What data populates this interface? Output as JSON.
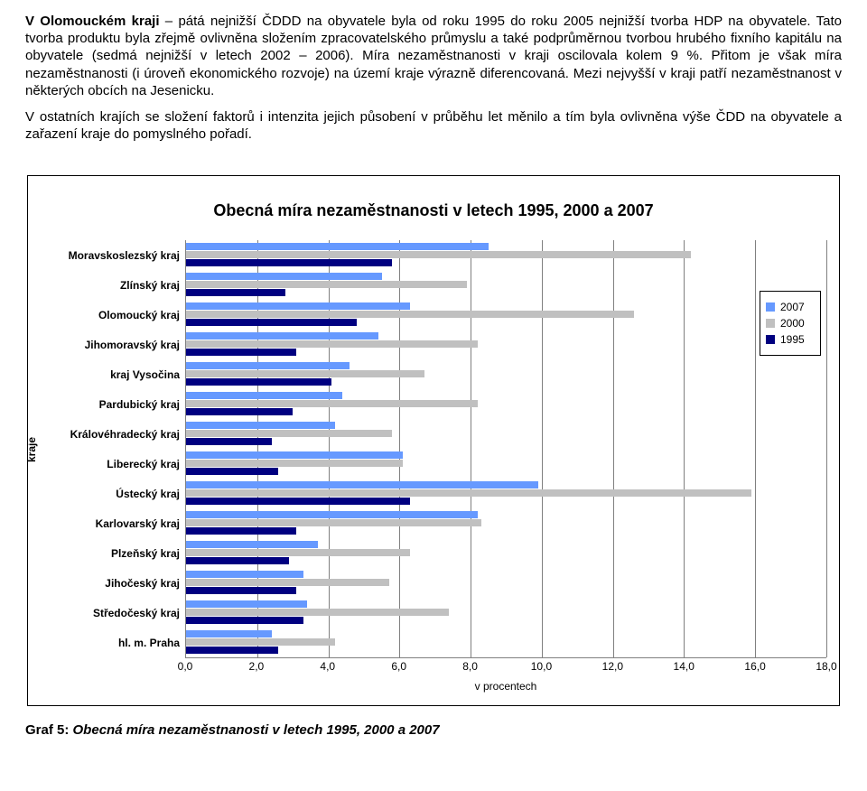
{
  "para1_bold": "V Olomouckém kraji",
  "para1_rest": " – pátá nejnižší ČDDD na obyvatele byla od roku 1995 do roku 2005 nejnižší tvorba HDP na obyvatele. Tato tvorba produktu byla zřejmě ovlivněna složením zpracovatelského průmyslu a také podprůměrnou tvorbou hrubého fixního kapitálu na obyvatele (sedmá nejnižší v letech 2002 – 2006). Míra nezaměstnanosti v kraji oscilovala kolem 9 %. Přitom je však míra nezaměstnanosti (i úroveň ekonomického rozvoje) na území kraje výrazně diferencovaná. Mezi nejvyšší v kraji patří nezaměstnanost v některých obcích na Jesenicku.",
  "para2": "V ostatních krajích se složení faktorů i intenzita jejich působení v průběhu let měnilo a tím byla ovlivněna výše ČDD na obyvatele a zařazení kraje do pomyslného pořadí.",
  "chart": {
    "title": "Obecná míra nezaměstnanosti v letech 1995, 2000 a 2007",
    "ylabel": "kraje",
    "xlabel": "v procentech",
    "xmax": 18.0,
    "xticks": [
      "0,0",
      "2,0",
      "4,0",
      "6,0",
      "8,0",
      "10,0",
      "12,0",
      "14,0",
      "16,0",
      "18,0"
    ],
    "xtick_vals": [
      0,
      2,
      4,
      6,
      8,
      10,
      12,
      14,
      16,
      18
    ],
    "series": [
      {
        "label": "2007",
        "color": "#6699ff"
      },
      {
        "label": "2000",
        "color": "#c0c0c0"
      },
      {
        "label": "1995",
        "color": "#000080"
      }
    ],
    "categories": [
      {
        "name": "Moravskoslezský kraj",
        "vals": [
          8.5,
          14.2,
          5.8
        ]
      },
      {
        "name": "Zlínský kraj",
        "vals": [
          5.5,
          7.9,
          2.8
        ]
      },
      {
        "name": "Olomoucký kraj",
        "vals": [
          6.3,
          12.6,
          4.8
        ]
      },
      {
        "name": "Jihomoravský kraj",
        "vals": [
          5.4,
          8.2,
          3.1
        ]
      },
      {
        "name": "kraj Vysočina",
        "vals": [
          4.6,
          6.7,
          4.1
        ]
      },
      {
        "name": "Pardubický kraj",
        "vals": [
          4.4,
          8.2,
          3.0
        ]
      },
      {
        "name": "Královéhradecký kraj",
        "vals": [
          4.2,
          5.8,
          2.4
        ]
      },
      {
        "name": "Liberecký kraj",
        "vals": [
          6.1,
          6.1,
          2.6
        ]
      },
      {
        "name": "Ústecký kraj",
        "vals": [
          9.9,
          15.9,
          6.3
        ]
      },
      {
        "name": "Karlovarský kraj",
        "vals": [
          8.2,
          8.3,
          3.1
        ]
      },
      {
        "name": "Plzeňský kraj",
        "vals": [
          3.7,
          6.3,
          2.9
        ]
      },
      {
        "name": "Jihočeský kraj",
        "vals": [
          3.3,
          5.7,
          3.1
        ]
      },
      {
        "name": "Středočeský kraj",
        "vals": [
          3.4,
          7.4,
          3.3
        ]
      },
      {
        "name": "hl. m. Praha",
        "vals": [
          2.4,
          4.2,
          2.6
        ]
      }
    ]
  },
  "caption_lead": "Graf 5: ",
  "caption_rest": "Obecná míra nezaměstnanosti v letech 1995, 2000 a 2007"
}
